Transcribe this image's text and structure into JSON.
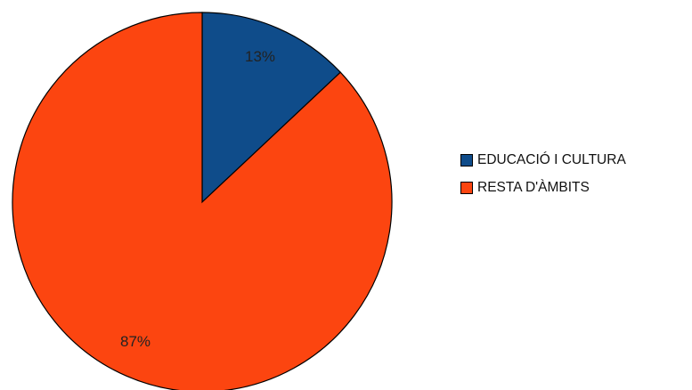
{
  "chart_data": {
    "type": "pie",
    "title": "",
    "categories": [
      "EDUCACIÓ I CULTURA",
      "RESTA D'ÀMBITS"
    ],
    "values": [
      13,
      87
    ],
    "labels": [
      "13%",
      "87%"
    ],
    "colors": [
      "#0f4c8a",
      "#fc4510"
    ],
    "start_angle_deg": 0,
    "direction": "clockwise",
    "legend_position": "right"
  }
}
